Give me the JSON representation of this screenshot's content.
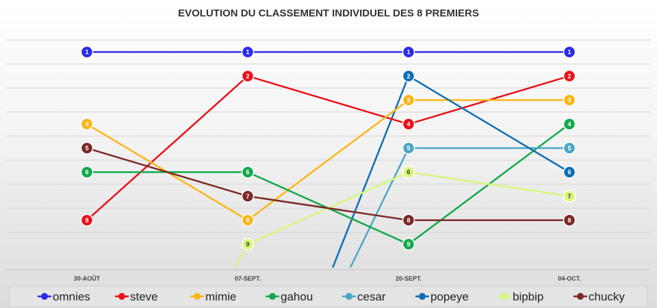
{
  "chart_data": {
    "type": "line",
    "title": "EVOLUTION DU CLASSEMENT INDIVIDUEL DES 8 PREMIERS",
    "xlabel": "",
    "ylabel": "",
    "categories": [
      "30-AOÛT",
      "07-SEPT.",
      "20-SEPT.",
      "04-OCT."
    ],
    "y_axis": {
      "min": 1,
      "max": 10,
      "reversed": true
    },
    "grid": true,
    "legend_position": "bottom",
    "series": [
      {
        "name": "omnies",
        "color": "#2b2bea",
        "values": [
          1,
          1,
          1,
          1
        ]
      },
      {
        "name": "steve",
        "color": "#e8121a",
        "values": [
          8,
          2,
          4,
          2
        ]
      },
      {
        "name": "mimie",
        "color": "#fbb614",
        "values": [
          4,
          8,
          3,
          3
        ]
      },
      {
        "name": "gahou",
        "color": "#13a84c",
        "values": [
          6,
          6,
          9,
          4
        ]
      },
      {
        "name": "cesar",
        "color": "#4aa7c4",
        "values": [
          null,
          null,
          5,
          5
        ]
      },
      {
        "name": "popeye",
        "color": "#0f6db5",
        "values": [
          null,
          null,
          2,
          6
        ]
      },
      {
        "name": "bipbip",
        "color": "#d6f77a",
        "values": [
          null,
          9,
          6,
          7
        ]
      },
      {
        "name": "chucky",
        "color": "#7b2a26",
        "values": [
          5,
          7,
          8,
          8
        ]
      }
    ],
    "entry_segments": [
      {
        "series": "bipbip",
        "from": [
          0.92,
          10
        ],
        "to": [
          1,
          9
        ]
      },
      {
        "series": "popeye",
        "from": [
          1.53,
          10
        ],
        "to": [
          2,
          2
        ]
      },
      {
        "series": "cesar",
        "from": [
          1.64,
          10
        ],
        "to": [
          2,
          5
        ]
      }
    ]
  }
}
